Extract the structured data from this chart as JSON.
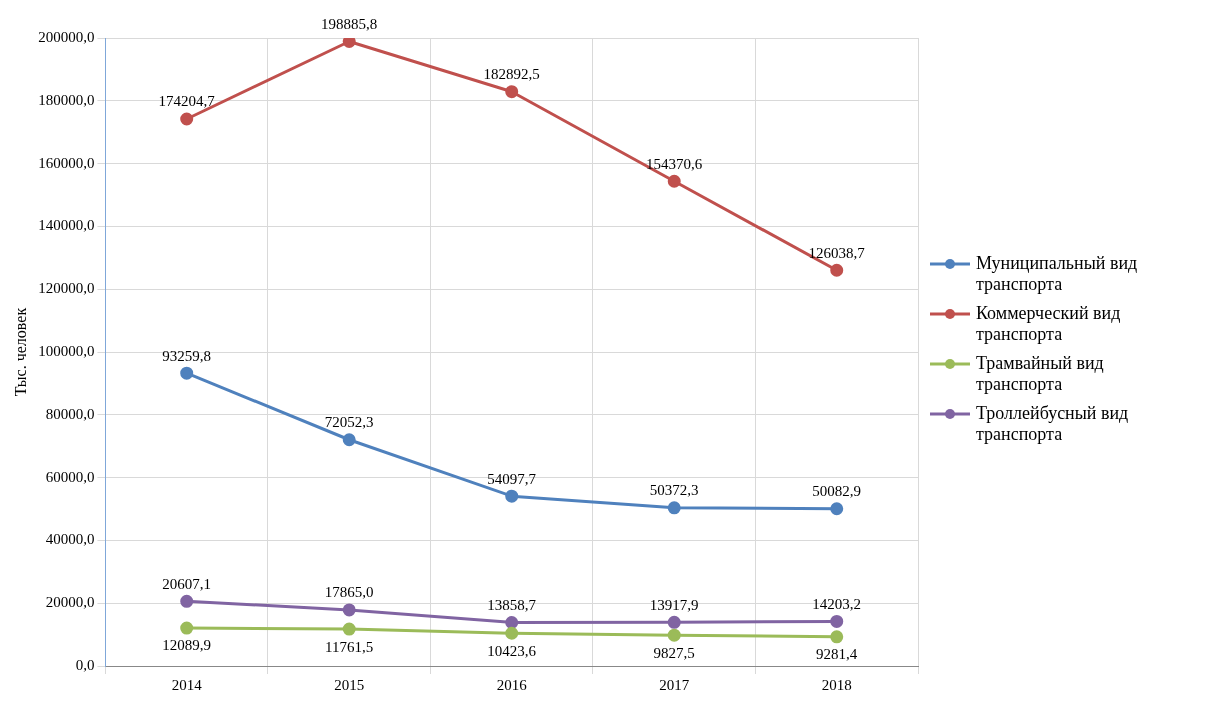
{
  "chart_data": {
    "type": "line",
    "ylabel": "Тыс. человек",
    "categories": [
      "2014",
      "2015",
      "2016",
      "2017",
      "2018"
    ],
    "ylim": [
      0,
      200000
    ],
    "yticks": [
      {
        "value": 0,
        "label": "0,0"
      },
      {
        "value": 20000,
        "label": "20000,0"
      },
      {
        "value": 40000,
        "label": "40000,0"
      },
      {
        "value": 60000,
        "label": "60000,0"
      },
      {
        "value": 80000,
        "label": "80000,0"
      },
      {
        "value": 100000,
        "label": "100000,0"
      },
      {
        "value": 120000,
        "label": "120000,0"
      },
      {
        "value": 140000,
        "label": "140000,0"
      },
      {
        "value": 160000,
        "label": "160000,0"
      },
      {
        "value": 180000,
        "label": "180000,0"
      },
      {
        "value": 200000,
        "label": "200000,0"
      }
    ],
    "grid": true,
    "legend": "right",
    "marker": "circle",
    "line_style": "solid",
    "series": [
      {
        "name": "Муниципальный вид транспорта",
        "color": "#4f81bd",
        "values": [
          93259.8,
          72052.3,
          54097.7,
          50372.3,
          50082.9
        ],
        "value_labels": [
          "93259,8",
          "72052,3",
          "54097,7",
          "50372,3",
          "50082,9"
        ]
      },
      {
        "name": "Коммерческий вид транспорта",
        "color": "#c0504d",
        "values": [
          174204.7,
          198885.8,
          182892.5,
          154370.6,
          126038.7
        ],
        "value_labels": [
          "174204,7",
          "198885,8",
          "182892,5",
          "154370,6",
          "126038,7"
        ]
      },
      {
        "name": "Трамвайный вид транспорта",
        "color": "#9bbb59",
        "values": [
          12089.9,
          11761.5,
          10423.6,
          9827.5,
          9281.4
        ],
        "value_labels": [
          "12089,9",
          "11761,5",
          "10423,6",
          "9827,5",
          "9281,4"
        ]
      },
      {
        "name": "Троллейбусный вид транспорта",
        "color": "#8064a2",
        "values": [
          20607.1,
          17865.0,
          13858.7,
          13917.9,
          14203.2
        ],
        "value_labels": [
          "20607,1",
          "17865,0",
          "13858,7",
          "13917,9",
          "14203,2"
        ]
      }
    ]
  }
}
